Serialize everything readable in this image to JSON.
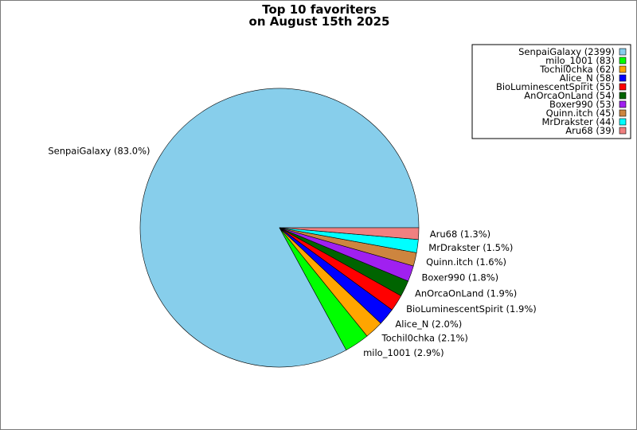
{
  "chart_data": {
    "type": "pie",
    "title": "Top 10 favoriters\non August 15th 2025",
    "categories": [
      "SenpaiGalaxy",
      "milo_1001",
      "Tochil0chka",
      "Alice_N",
      "BioLuminescentSpirit",
      "AnOrcaOnLand",
      "Boxer990",
      "Quinn.itch",
      "MrDrakster",
      "Aru68"
    ],
    "values": [
      2399,
      83,
      62,
      58,
      55,
      54,
      53,
      45,
      44,
      39
    ],
    "slice_labels": [
      "SenpaiGalaxy (83.0%)",
      "milo_1001 (2.9%)",
      "Tochil0chka (2.1%)",
      "Alice_N (2.0%)",
      "BioLuminescentSpirit (1.9%)",
      "AnOrcaOnLand (1.9%)",
      "Boxer990 (1.8%)",
      "Quinn.itch (1.6%)",
      "MrDrakster (1.5%)",
      "Aru68 (1.3%)"
    ],
    "legend_entries": [
      "SenpaiGalaxy (2399)",
      "milo_1001 (83)",
      "Tochil0chka (62)",
      "Alice_N (58)",
      "BioLuminescentSpirit (55)",
      "AnOrcaOnLand (54)",
      "Boxer990 (53)",
      "Quinn.itch (45)",
      "MrDrakster (44)",
      "Aru68 (39)"
    ],
    "colors": [
      "#87ceeb",
      "#00ff00",
      "#ffa500",
      "#0000ff",
      "#ff0000",
      "#006400",
      "#a020f0",
      "#cd853f",
      "#00ffff",
      "#f08080"
    ],
    "start_angle": "0° (3 o'clock), counter-clockwise",
    "legend_position": "top-right"
  }
}
